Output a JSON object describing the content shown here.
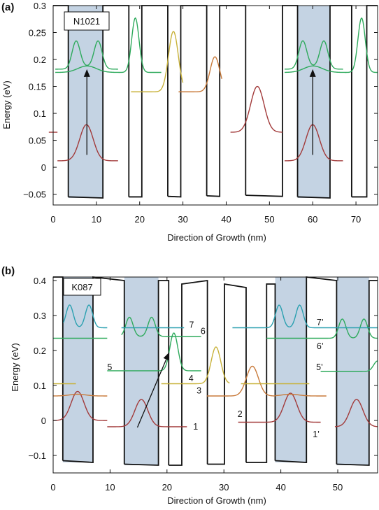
{
  "chart_data": [
    {
      "type": "line",
      "panel_label": "(a)",
      "sample_label": "N1021",
      "xlabel": "Direction of Growth (nm)",
      "ylabel": "Energy (eV)",
      "xlim": [
        0,
        75
      ],
      "ylim": [
        -0.07,
        0.3
      ],
      "xticks": [
        "0",
        "10",
        "20",
        "30",
        "40",
        "50",
        "60",
        "70"
      ],
      "yticks": [
        "−0.05",
        "0",
        "0.05",
        "0.1",
        "0.15",
        "0.2",
        "0.25",
        "0.3"
      ],
      "ytick_values": [
        -0.05,
        0,
        0.05,
        0.1,
        0.15,
        0.2,
        0.25,
        0.3
      ],
      "xtick_values": [
        0,
        10,
        20,
        30,
        40,
        50,
        60,
        70
      ],
      "barriers": [
        {
          "x0": 0,
          "x1": 3.5,
          "top": 0.3
        },
        {
          "x0": 11.5,
          "x1": 17.5,
          "top": 0.3
        },
        {
          "x0": 20.5,
          "x1": 26.5,
          "top": 0.3
        },
        {
          "x0": 29.5,
          "x1": 35.5,
          "top": 0.3
        },
        {
          "x0": 38.5,
          "x1": 44.5,
          "top": 0.3
        },
        {
          "x0": 53,
          "x1": 56.5,
          "top": 0.3
        },
        {
          "x0": 64,
          "x1": 69,
          "top": 0.3
        },
        {
          "x0": 72.5,
          "x1": 75,
          "top": 0.3
        }
      ],
      "wells": [
        {
          "x0": 3.5,
          "x1": 11.5,
          "bottom_left": -0.055,
          "bottom_right": -0.057,
          "shaded": true
        },
        {
          "x0": 17.5,
          "x1": 20.5,
          "bottom_left": -0.055,
          "bottom_right": -0.055,
          "shaded": false
        },
        {
          "x0": 26.5,
          "x1": 29.5,
          "bottom_left": -0.054,
          "bottom_right": -0.055,
          "shaded": false
        },
        {
          "x0": 35.5,
          "x1": 38.5,
          "bottom_left": -0.053,
          "bottom_right": -0.054,
          "shaded": false
        },
        {
          "x0": 44.5,
          "x1": 53,
          "bottom_left": -0.052,
          "bottom_right": -0.054,
          "shaded": false
        },
        {
          "x0": 56.5,
          "x1": 64,
          "bottom_left": -0.055,
          "bottom_right": -0.057,
          "shaded": true
        },
        {
          "x0": 69,
          "x1": 72.5,
          "bottom_left": -0.055,
          "bottom_right": -0.055,
          "shaded": false
        }
      ],
      "wavefunctions": [
        {
          "color": "#a23a3a",
          "base": 0.065,
          "x0": -1,
          "x1": 1,
          "peaks": []
        },
        {
          "color": "#a23a3a",
          "base": 0.012,
          "x0": 1,
          "x1": 15,
          "peaks": [
            {
              "x": 7.7,
              "h": 0.067,
              "w": 2.2
            }
          ]
        },
        {
          "color": "#2eaa5c",
          "base": 0.182,
          "x0": 0.5,
          "x1": 15,
          "peaks": [
            {
              "x": 5.3,
              "h": 0.05,
              "w": 1.3
            },
            {
              "x": 10.4,
              "h": 0.05,
              "w": 1.3
            },
            {
              "x": 7.85,
              "h": 0.005,
              "w": 3
            }
          ]
        },
        {
          "color": "#2eaa5c",
          "base": 0.176,
          "x0": 0.5,
          "x1": 25,
          "peaks": [
            {
              "x": 7.85,
              "h": 0.012,
              "w": 3
            },
            {
              "x": 19,
              "h": 0.101,
              "w": 1.2
            }
          ]
        },
        {
          "color": "#c8b23a",
          "base": 0.14,
          "x0": 18,
          "x1": 30,
          "peaks": [
            {
              "x": 27.8,
              "h": 0.112,
              "w": 1.6
            }
          ]
        },
        {
          "color": "#c87a3a",
          "base": 0.14,
          "x0": 29,
          "x1": 39,
          "peaks": [
            {
              "x": 37.4,
              "h": 0.065,
              "w": 1.6
            }
          ]
        },
        {
          "color": "#a23a3a",
          "base": 0.065,
          "x0": 41,
          "x1": 53,
          "peaks": [
            {
              "x": 47.2,
              "h": 0.085,
              "w": 2.2
            }
          ]
        },
        {
          "color": "#a23a3a",
          "base": 0.012,
          "x0": 53.5,
          "x1": 67,
          "peaks": [
            {
              "x": 60,
              "h": 0.067,
              "w": 2.2
            }
          ]
        },
        {
          "color": "#2eaa5c",
          "base": 0.182,
          "x0": 53.5,
          "x1": 67,
          "peaks": [
            {
              "x": 57.7,
              "h": 0.05,
              "w": 1.3
            },
            {
              "x": 62.6,
              "h": 0.05,
              "w": 1.3
            },
            {
              "x": 60.1,
              "h": 0.005,
              "w": 3
            }
          ]
        },
        {
          "color": "#2eaa5c",
          "base": 0.176,
          "x0": 53.5,
          "x1": 75,
          "peaks": [
            {
              "x": 60.1,
              "h": 0.012,
              "w": 3
            },
            {
              "x": 71.3,
              "h": 0.101,
              "w": 1.2
            }
          ]
        }
      ],
      "arrows": [
        {
          "x": 7.8,
          "y0": 0.023,
          "y1": 0.182
        },
        {
          "x": 60,
          "y0": 0.023,
          "y1": 0.182
        }
      ],
      "level_labels": []
    },
    {
      "type": "line",
      "panel_label": "(b)",
      "sample_label": "K087",
      "xlabel": "Direction of Growth (nm)",
      "ylabel": "Energy (eV)",
      "xlim": [
        0,
        57
      ],
      "ylim": [
        -0.15,
        0.41
      ],
      "xticks": [
        "0",
        "10",
        "20",
        "30",
        "40",
        "50"
      ],
      "yticks": [
        "−0.1",
        "0",
        "0.1",
        "0.2",
        "0.3",
        "0.4"
      ],
      "ytick_values": [
        -0.1,
        0,
        0.1,
        0.2,
        0.3,
        0.4
      ],
      "xtick_values": [
        0,
        10,
        20,
        30,
        40,
        50
      ],
      "barriers": [
        {
          "x0": 0,
          "x1": 1.7,
          "top": 0.41
        },
        {
          "x0": 7,
          "x1": 12.5,
          "top": 0.41,
          "top_left": 0.41,
          "top_right": 0.4
        },
        {
          "x0": 18.5,
          "x1": 20.3,
          "top": 0.4
        },
        {
          "x0": 22.6,
          "x1": 27.1,
          "top": 0.39,
          "top_left": 0.39,
          "top_right": 0.4
        },
        {
          "x0": 30.1,
          "x1": 33.9,
          "top": 0.39,
          "top_left": 0.39,
          "top_right": 0.38
        },
        {
          "x0": 37.5,
          "x1": 39,
          "top": 0.39
        },
        {
          "x0": 44.5,
          "x1": 49.8,
          "top": 0.41,
          "top_left": 0.41,
          "top_right": 0.4
        },
        {
          "x0": 55.5,
          "x1": 57,
          "top": 0.4
        }
      ],
      "wells": [
        {
          "x0": 1.7,
          "x1": 7,
          "bottom_left": -0.115,
          "bottom_right": -0.12,
          "shaded": true
        },
        {
          "x0": 12.5,
          "x1": 18.5,
          "bottom_left": -0.125,
          "bottom_right": -0.128,
          "shaded": true
        },
        {
          "x0": 20.3,
          "x1": 22.6,
          "bottom_left": -0.128,
          "bottom_right": -0.128,
          "shaded": false
        },
        {
          "x0": 27.1,
          "x1": 30.1,
          "bottom_left": -0.125,
          "bottom_right": -0.125,
          "shaded": false
        },
        {
          "x0": 33.9,
          "x1": 37.5,
          "bottom_left": -0.12,
          "bottom_right": -0.12,
          "shaded": false
        },
        {
          "x0": 39,
          "x1": 44.5,
          "bottom_left": -0.115,
          "bottom_right": -0.12,
          "shaded": true
        },
        {
          "x0": 49.8,
          "x1": 55.5,
          "bottom_left": -0.125,
          "bottom_right": -0.128,
          "shaded": true
        }
      ],
      "wavefunctions": [
        {
          "color": "#a23a3a",
          "base": 0.0,
          "x0": 0,
          "x1": 9.5,
          "peaks": [
            {
              "x": 4.3,
              "h": 0.083,
              "w": 1.6
            }
          ]
        },
        {
          "color": "#c87a3a",
          "base": 0.07,
          "x0": 0,
          "x1": 9.5,
          "peaks": [
            {
              "x": 4.3,
              "h": 0.005,
              "w": 2
            }
          ]
        },
        {
          "color": "#c8b23a",
          "base": 0.105,
          "x0": 0,
          "x1": 4,
          "peaks": []
        },
        {
          "color": "#2eaa5c",
          "base": 0.235,
          "x0": 0,
          "x1": 9.5,
          "peaks": []
        },
        {
          "color": "#2aa0b0",
          "base": 0.265,
          "x0": 1.8,
          "x1": 9.5,
          "peaks": [
            {
              "x": 2.9,
              "h": 0.065,
              "w": 0.9
            },
            {
              "x": 6.3,
              "h": 0.065,
              "w": 0.9
            }
          ]
        },
        {
          "color": "#a23a3a",
          "base": -0.018,
          "x0": 9.5,
          "x1": 23.5,
          "peaks": [
            {
              "x": 15.5,
              "h": 0.078,
              "w": 1.6
            }
          ]
        },
        {
          "color": "#2eaa5c",
          "base": 0.142,
          "x0": 9.5,
          "x1": 26,
          "peaks": [
            {
              "x": 21.2,
              "h": 0.108,
              "w": 1
            }
          ]
        },
        {
          "color": "#2eaa5c",
          "base": 0.24,
          "x0": 12,
          "x1": 26,
          "peaks": [
            {
              "x": 13.4,
              "h": 0.055,
              "w": 0.9
            },
            {
              "x": 17.3,
              "h": 0.055,
              "w": 0.9
            }
          ]
        },
        {
          "color": "#2aa0b0",
          "base": 0.265,
          "x0": 12,
          "x1": 23,
          "peaks": []
        },
        {
          "color": "#c8b23a",
          "base": 0.105,
          "x0": 19,
          "x1": 31,
          "peaks": [
            {
              "x": 28.6,
              "h": 0.105,
              "w": 1.2
            }
          ]
        },
        {
          "color": "#c87a3a",
          "base": 0.07,
          "x0": 27,
          "x1": 39,
          "peaks": [
            {
              "x": 35,
              "h": 0.085,
              "w": 1.5
            }
          ]
        },
        {
          "color": "#a23a3a",
          "base": -0.005,
          "x0": 32.5,
          "x1": 47,
          "peaks": [
            {
              "x": 41.7,
              "h": 0.083,
              "w": 1.6
            }
          ]
        },
        {
          "color": "#c87a3a",
          "base": 0.07,
          "x0": 39,
          "x1": 48,
          "peaks": [
            {
              "x": 41.7,
              "h": 0.005,
              "w": 2
            }
          ]
        },
        {
          "color": "#c8b23a",
          "base": 0.105,
          "x0": 33,
          "x1": 45,
          "peaks": []
        },
        {
          "color": "#2eaa5c",
          "base": 0.14,
          "x0": 47,
          "x1": 57,
          "peaks": [
            {
              "x": 57,
              "h": 0.03,
              "w": 1
            }
          ]
        },
        {
          "color": "#2eaa5c",
          "base": 0.235,
          "x0": 37.5,
          "x1": 57,
          "peaks": [
            {
              "x": 50.8,
              "h": 0.055,
              "w": 0.9
            },
            {
              "x": 54.6,
              "h": 0.055,
              "w": 0.9
            }
          ]
        },
        {
          "color": "#2aa0b0",
          "base": 0.265,
          "x0": 31.5,
          "x1": 57,
          "peaks": [
            {
              "x": 39.7,
              "h": 0.065,
              "w": 0.9
            },
            {
              "x": 43.3,
              "h": 0.065,
              "w": 0.9
            }
          ]
        },
        {
          "color": "#a23a3a",
          "base": -0.018,
          "x0": 49.5,
          "x1": 57,
          "peaks": [
            {
              "x": 53.3,
              "h": 0.078,
              "w": 1.6
            }
          ]
        }
      ],
      "arrows": [
        {
          "x0": 14.8,
          "y0": -0.02,
          "x1": 20.4,
          "y1": 0.195
        }
      ],
      "level_labels": [
        {
          "text": "7",
          "x": 23.9,
          "y": 0.273
        },
        {
          "text": "6",
          "x": 25.9,
          "y": 0.255
        },
        {
          "text": "5",
          "x": 9.5,
          "y": 0.152
        },
        {
          "text": "4",
          "x": 23.8,
          "y": 0.12
        },
        {
          "text": "3",
          "x": 25.2,
          "y": 0.085
        },
        {
          "text": "2",
          "x": 32.4,
          "y": 0.018
        },
        {
          "text": "1",
          "x": 24.6,
          "y": -0.018
        },
        {
          "text": "7’",
          "x": 46.3,
          "y": 0.28
        },
        {
          "text": "6’",
          "x": 46.3,
          "y": 0.212
        },
        {
          "text": "5’",
          "x": 46.2,
          "y": 0.152
        },
        {
          "text": "1’",
          "x": 45.6,
          "y": -0.04
        }
      ]
    }
  ]
}
